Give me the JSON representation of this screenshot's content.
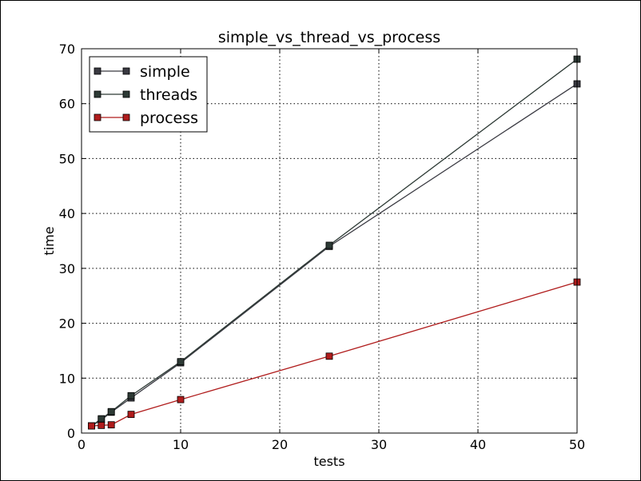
{
  "chart_data": {
    "type": "line",
    "title": "simple_vs_thread_vs_process",
    "xlabel": "tests",
    "ylabel": "time",
    "xlim": [
      0,
      50
    ],
    "ylim": [
      0,
      70
    ],
    "xticks": [
      0,
      10,
      20,
      30,
      40,
      50
    ],
    "yticks": [
      0,
      10,
      20,
      30,
      40,
      50,
      60,
      70
    ],
    "grid": true,
    "legend_position": "top-left",
    "series": [
      {
        "name": "simple",
        "color": "#3a3a42",
        "marker": "square",
        "x": [
          1,
          2,
          3,
          5,
          10,
          25,
          50
        ],
        "y": [
          1.3,
          2.4,
          3.8,
          6.4,
          12.8,
          34.0,
          63.6
        ]
      },
      {
        "name": "threads",
        "color": "#2d3a35",
        "marker": "square",
        "x": [
          1,
          2,
          3,
          5,
          10,
          25,
          50
        ],
        "y": [
          1.3,
          2.6,
          3.9,
          6.8,
          13.0,
          34.2,
          68.1
        ]
      },
      {
        "name": "process",
        "color": "#b01c1c",
        "marker": "square",
        "x": [
          1,
          2,
          3,
          5,
          10,
          25,
          50
        ],
        "y": [
          1.3,
          1.4,
          1.5,
          3.4,
          6.1,
          14.0,
          27.5
        ]
      }
    ]
  }
}
